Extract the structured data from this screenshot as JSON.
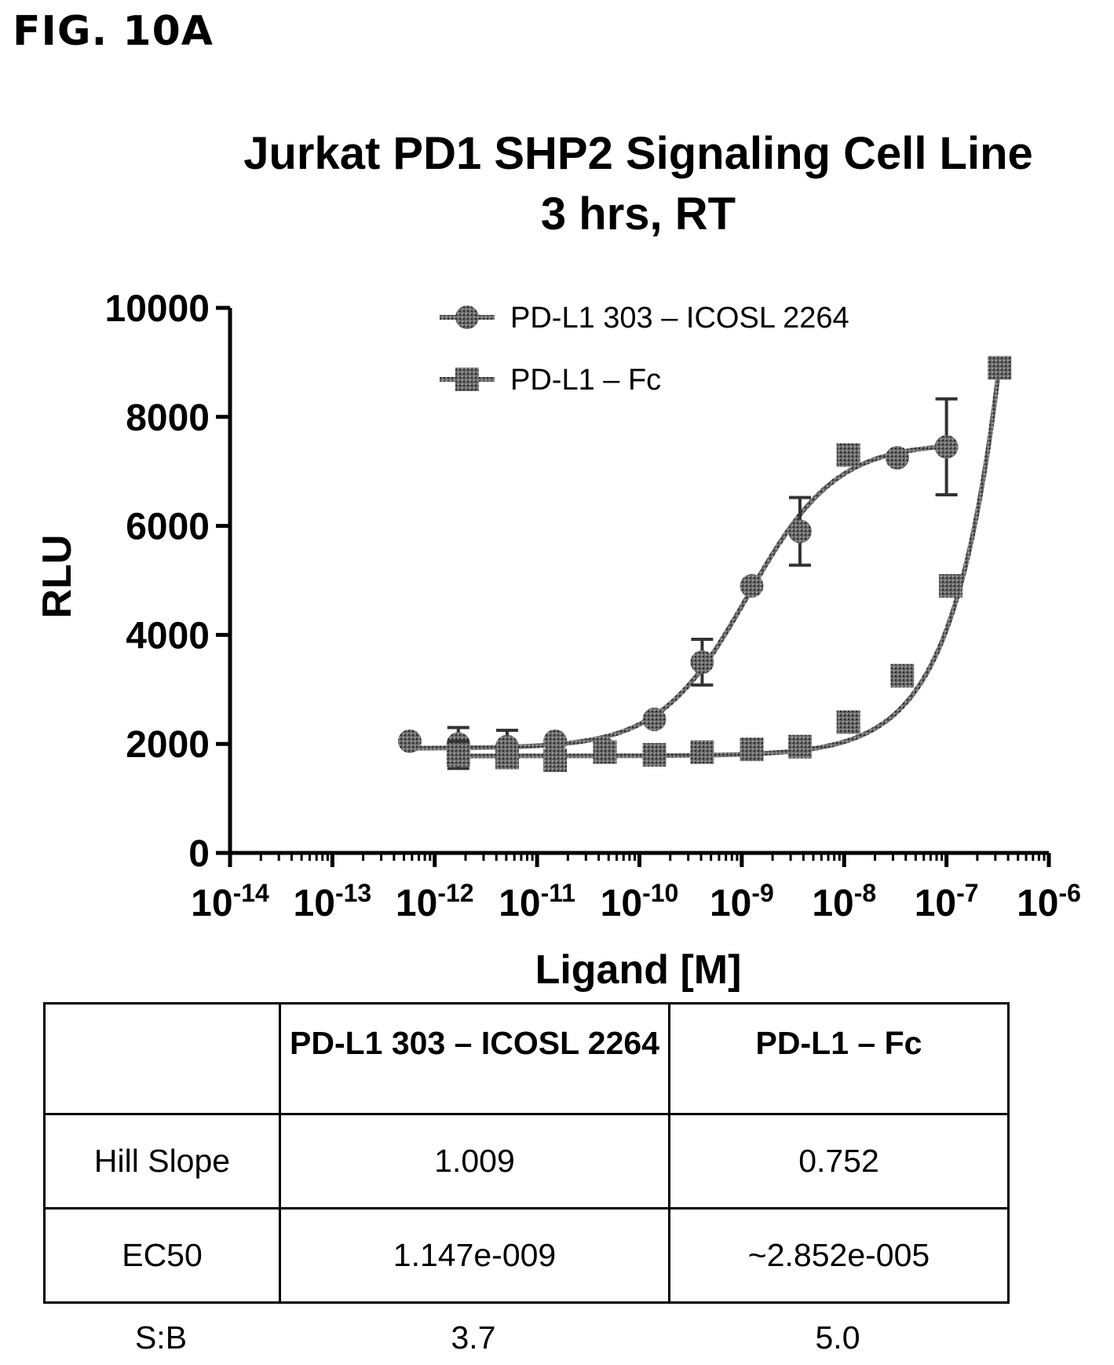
{
  "figure_label": "FIG. 10A",
  "chart_data": {
    "type": "scatter",
    "title": "Jurkat PD1 SHP2 Signaling Cell Line",
    "subtitle": "3 hrs, RT",
    "xlabel": "Ligand [M]",
    "ylabel": "RLU",
    "x_scale": "log",
    "xlim": [
      1e-14,
      1e-06
    ],
    "ylim": [
      0,
      10000
    ],
    "x_ticks": [
      {
        "base": "10",
        "exp": "-14",
        "value": 1e-14
      },
      {
        "base": "10",
        "exp": "-13",
        "value": 1e-13
      },
      {
        "base": "10",
        "exp": "-12",
        "value": 1e-12
      },
      {
        "base": "10",
        "exp": "-11",
        "value": 1e-11
      },
      {
        "base": "10",
        "exp": "-10",
        "value": 1e-10
      },
      {
        "base": "10",
        "exp": "-9",
        "value": 1e-09
      },
      {
        "base": "10",
        "exp": "-8",
        "value": 1e-08
      },
      {
        "base": "10",
        "exp": "-7",
        "value": 1e-07
      },
      {
        "base": "10",
        "exp": "-6",
        "value": 1e-06
      }
    ],
    "y_ticks": [
      "0",
      "2000",
      "4000",
      "6000",
      "8000",
      "10000"
    ],
    "legend_position": "top",
    "series": [
      {
        "name": "PD-L1 303 – ICOSL 2264",
        "marker": "circle",
        "color": "#555555",
        "points": [
          {
            "x": 5.7e-13,
            "y": 2050,
            "err": 0
          },
          {
            "x": 1.7e-12,
            "y": 2000,
            "err": 300
          },
          {
            "x": 5.1e-12,
            "y": 1950,
            "err": 300
          },
          {
            "x": 1.5e-11,
            "y": 2050,
            "err": 0
          },
          {
            "x": 4.6e-11,
            "y": 1900,
            "err": 0
          },
          {
            "x": 1.4e-10,
            "y": 2450,
            "err": 0
          },
          {
            "x": 4.1e-10,
            "y": 3500,
            "err": 420
          },
          {
            "x": 1.25e-09,
            "y": 4900,
            "err": 0
          },
          {
            "x": 3.7e-09,
            "y": 5900,
            "err": 620
          },
          {
            "x": 3.3e-08,
            "y": 7250,
            "err": 0
          },
          {
            "x": 1e-07,
            "y": 7450,
            "err": 880
          }
        ],
        "fit": {
          "bottom": 1920,
          "top": 7520,
          "ec50": 1.147e-09,
          "hill": 1.009
        }
      },
      {
        "name": "PD-L1 – Fc",
        "marker": "square",
        "color": "#555555",
        "points": [
          {
            "x": 1.7e-12,
            "y": 1800,
            "err": 250
          },
          {
            "x": 5.1e-12,
            "y": 1750,
            "err": 0
          },
          {
            "x": 1.5e-11,
            "y": 1700,
            "err": 0
          },
          {
            "x": 4.6e-11,
            "y": 1850,
            "err": 0
          },
          {
            "x": 1.4e-10,
            "y": 1800,
            "err": 0
          },
          {
            "x": 4.1e-10,
            "y": 1850,
            "err": 0
          },
          {
            "x": 1.25e-09,
            "y": 1900,
            "err": 0
          },
          {
            "x": 3.7e-09,
            "y": 1950,
            "err": 0
          },
          {
            "x": 1.1e-08,
            "y": 7300,
            "err": 0
          },
          {
            "x": 1.1e-08,
            "y": 2400,
            "err": 0
          },
          {
            "x": 3.7e-08,
            "y": 3250,
            "err": 0
          },
          {
            "x": 1.1e-07,
            "y": 4900,
            "err": 0
          },
          {
            "x": 3.3e-07,
            "y": 8900,
            "err": 0
          }
        ]
      }
    ],
    "table": {
      "headers": [
        "",
        "PD-L1 303 – ICOSL 2264",
        "PD-L1 – Fc"
      ],
      "rows": [
        [
          "Hill Slope",
          "1.009",
          "0.752"
        ],
        [
          "EC50",
          "1.147e-009",
          "~2.852e-005"
        ]
      ],
      "footer": [
        "S:B",
        "3.7",
        "5.0"
      ]
    }
  }
}
